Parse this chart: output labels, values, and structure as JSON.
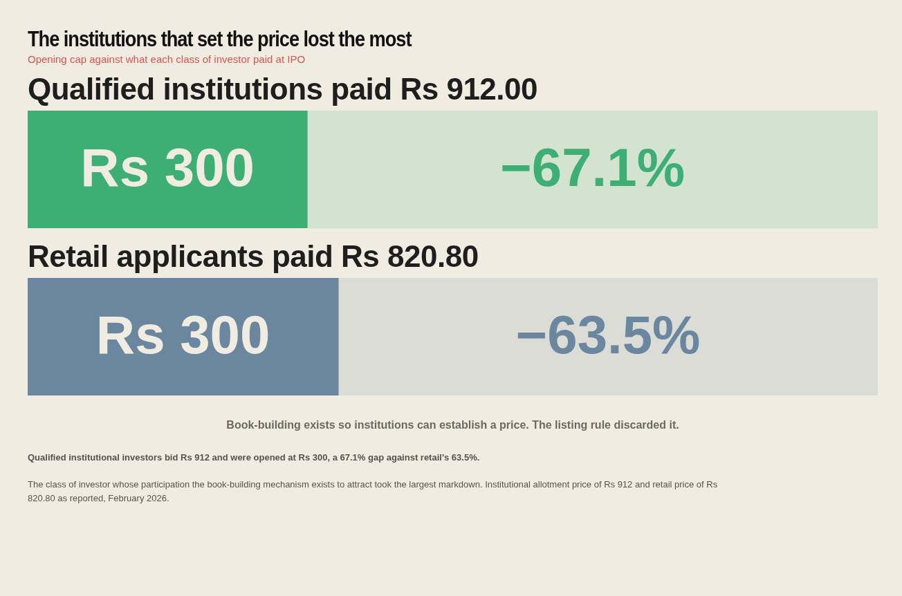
{
  "chart_data": [
    {
      "type": "other",
      "title": "The institutions that set the price lost the most",
      "subtitle": "Opening cap against what each class of investor paid at IPO"
    },
    {
      "type": "bar",
      "title": "Qualified institutions paid Rs 912.00",
      "orientation": "horizontal",
      "stacked": true,
      "legend": false,
      "tick_labels": false,
      "xlim": [
        0,
        912
      ],
      "categories": [
        null
      ],
      "series": [
        {
          "color": "#3daf74",
          "values": [
            300
          ],
          "value_labels": [
            "Rs 300"
          ]
        },
        {
          "color": "#d3e3cf",
          "values": [
            612
          ]
        }
      ],
      "annotations": [
        "−67.1%"
      ]
    },
    {
      "type": "bar",
      "title": "Retail applicants paid Rs 820.80",
      "orientation": "horizontal",
      "stacked": true,
      "legend": false,
      "tick_labels": false,
      "xlim": [
        0,
        820.8
      ],
      "categories": [
        null
      ],
      "series": [
        {
          "color": "#6b879f",
          "values": [
            300
          ],
          "value_labels": [
            "Rs 300"
          ]
        },
        {
          "color": "#dcdcd7",
          "values": [
            520.8
          ]
        }
      ],
      "annotations": [
        "−63.5%",
        "Book-building exists so institutions can establish a price. The listing rule discarded it.",
        "Qualified institutional investors bid Rs 912 and were opened at Rs 300, a 67.1% gap against retail's 63.5%.",
        "The class of investor whose participation the book-building mechanism exists to attract took the largest markdown. Institutional allotment price of Rs 912 and retail price of Rs 820.80 as reported, February 2026."
      ]
    }
  ]
}
